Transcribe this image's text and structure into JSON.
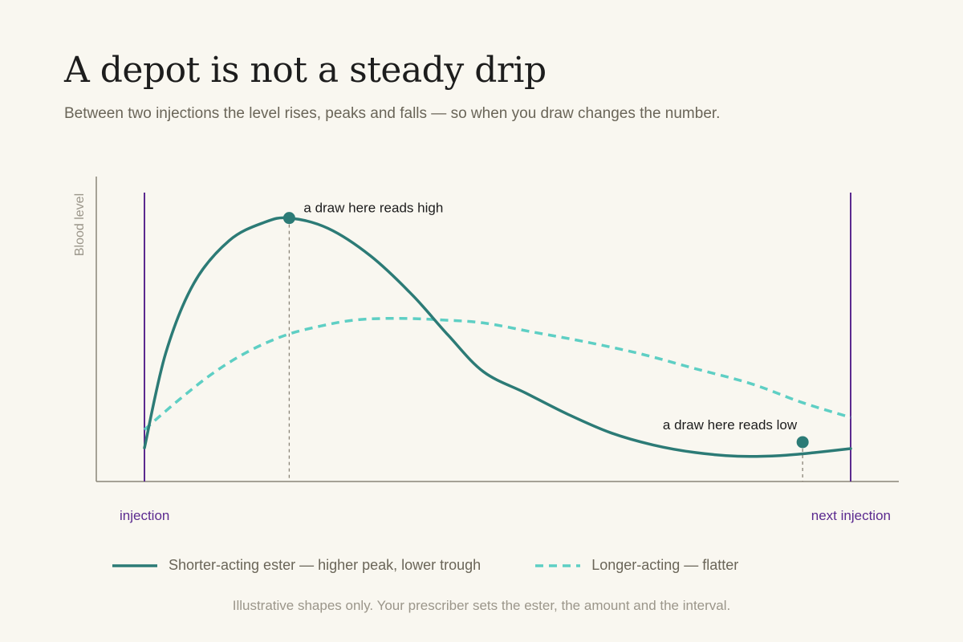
{
  "header": {
    "title": "A depot is not a steady drip",
    "subtitle": "Between two injections the level rises, peaks and falls — so when you draw changes the number."
  },
  "footnote": "Illustrative shapes only. Your prescriber sets the ester, the amount and the interval.",
  "colors": {
    "shorter": "#2c7b76",
    "longer": "#5ecfc4",
    "injection": "#5b2a8f",
    "axis": "#8a8578",
    "muted_text": "#9b968a"
  },
  "chart_data": {
    "type": "line",
    "ylabel": "Blood level",
    "xlabel": "",
    "xlim": [
      0,
      1
    ],
    "ylim": [
      0,
      1
    ],
    "grid": false,
    "x_markers": [
      {
        "x": 0,
        "label": "injection"
      },
      {
        "x": 1,
        "label": "next injection"
      }
    ],
    "series": [
      {
        "name": "Shorter-acting ester — higher peak, lower trough",
        "style": "solid",
        "points": [
          [
            0,
            0.11
          ],
          [
            0.03,
            0.42
          ],
          [
            0.07,
            0.65
          ],
          [
            0.12,
            0.79
          ],
          [
            0.17,
            0.85
          ],
          [
            0.205,
            0.864
          ],
          [
            0.26,
            0.83
          ],
          [
            0.32,
            0.74
          ],
          [
            0.38,
            0.61
          ],
          [
            0.43,
            0.48
          ],
          [
            0.48,
            0.36
          ],
          [
            0.54,
            0.29
          ],
          [
            0.6,
            0.22
          ],
          [
            0.66,
            0.16
          ],
          [
            0.72,
            0.12
          ],
          [
            0.78,
            0.095
          ],
          [
            0.84,
            0.083
          ],
          [
            0.9,
            0.085
          ],
          [
            0.95,
            0.095
          ],
          [
            1,
            0.108
          ]
        ]
      },
      {
        "name": "Longer-acting — flatter",
        "style": "dashed",
        "points": [
          [
            0,
            0.17
          ],
          [
            0.05,
            0.27
          ],
          [
            0.1,
            0.36
          ],
          [
            0.15,
            0.43
          ],
          [
            0.2,
            0.48
          ],
          [
            0.25,
            0.51
          ],
          [
            0.3,
            0.53
          ],
          [
            0.36,
            0.535
          ],
          [
            0.42,
            0.53
          ],
          [
            0.48,
            0.52
          ],
          [
            0.55,
            0.49
          ],
          [
            0.62,
            0.46
          ],
          [
            0.7,
            0.42
          ],
          [
            0.78,
            0.37
          ],
          [
            0.86,
            0.32
          ],
          [
            0.93,
            0.26
          ],
          [
            1,
            0.21
          ]
        ]
      }
    ],
    "annotations": [
      {
        "x": 0.205,
        "y": 0.864,
        "text": "a draw here reads high",
        "align": "right"
      },
      {
        "x": 0.932,
        "y": 0.129,
        "text": "a draw here reads low",
        "align": "above-left"
      }
    ]
  }
}
